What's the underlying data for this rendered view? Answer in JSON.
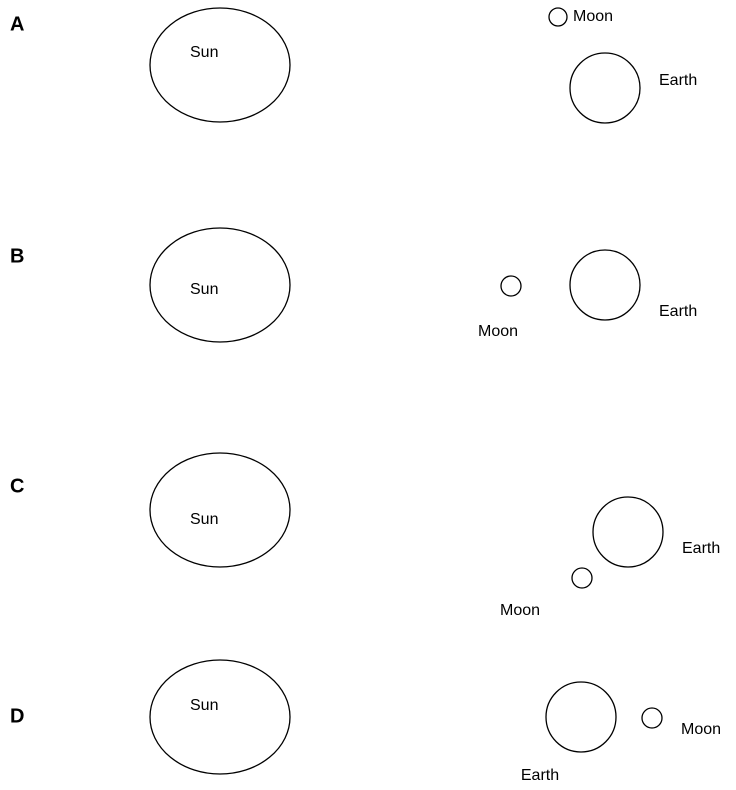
{
  "panels": [
    {
      "letter": "A",
      "sun": "Sun",
      "moon": "Moon",
      "earth": "Earth"
    },
    {
      "letter": "B",
      "sun": "Sun",
      "moon": "Moon",
      "earth": "Earth"
    },
    {
      "letter": "C",
      "sun": "Sun",
      "moon": "Moon",
      "earth": "Earth"
    },
    {
      "letter": "D",
      "sun": "Sun",
      "moon": "Moon",
      "earth": "Earth"
    }
  ]
}
